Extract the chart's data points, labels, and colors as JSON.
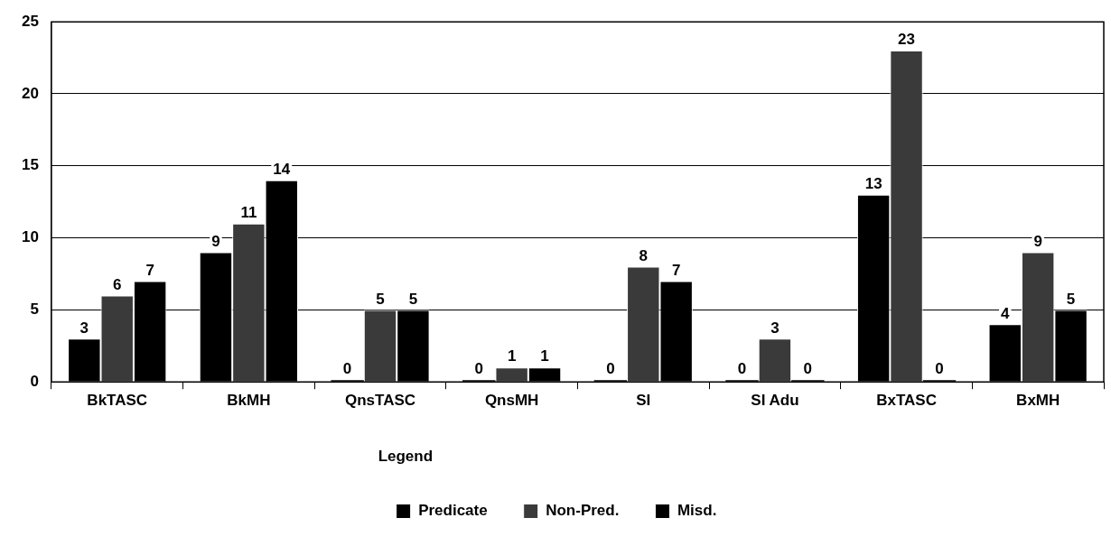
{
  "chart_data": {
    "type": "bar",
    "categories": [
      "BkTASC",
      "BkMH",
      "QnsTASC",
      "QnsMH",
      "SI",
      "SI Adu",
      "BxTASC",
      "BxMH"
    ],
    "series": [
      {
        "name": "Predicate",
        "color": "#000000",
        "values": [
          3,
          9,
          0,
          0,
          0,
          0,
          13,
          4
        ]
      },
      {
        "name": "Non-Pred.",
        "color": "#3a3a3a",
        "values": [
          6,
          11,
          5,
          1,
          8,
          3,
          23,
          9
        ]
      },
      {
        "name": "Misd.",
        "color": "#000000",
        "values": [
          7,
          14,
          5,
          1,
          7,
          0,
          0,
          5
        ]
      }
    ],
    "ylim": [
      0,
      25
    ],
    "yticks": [
      0,
      5,
      10,
      15,
      20,
      25
    ],
    "grid": "y",
    "legend": "bottom",
    "legend_title": "Legend",
    "data_labels": true
  }
}
